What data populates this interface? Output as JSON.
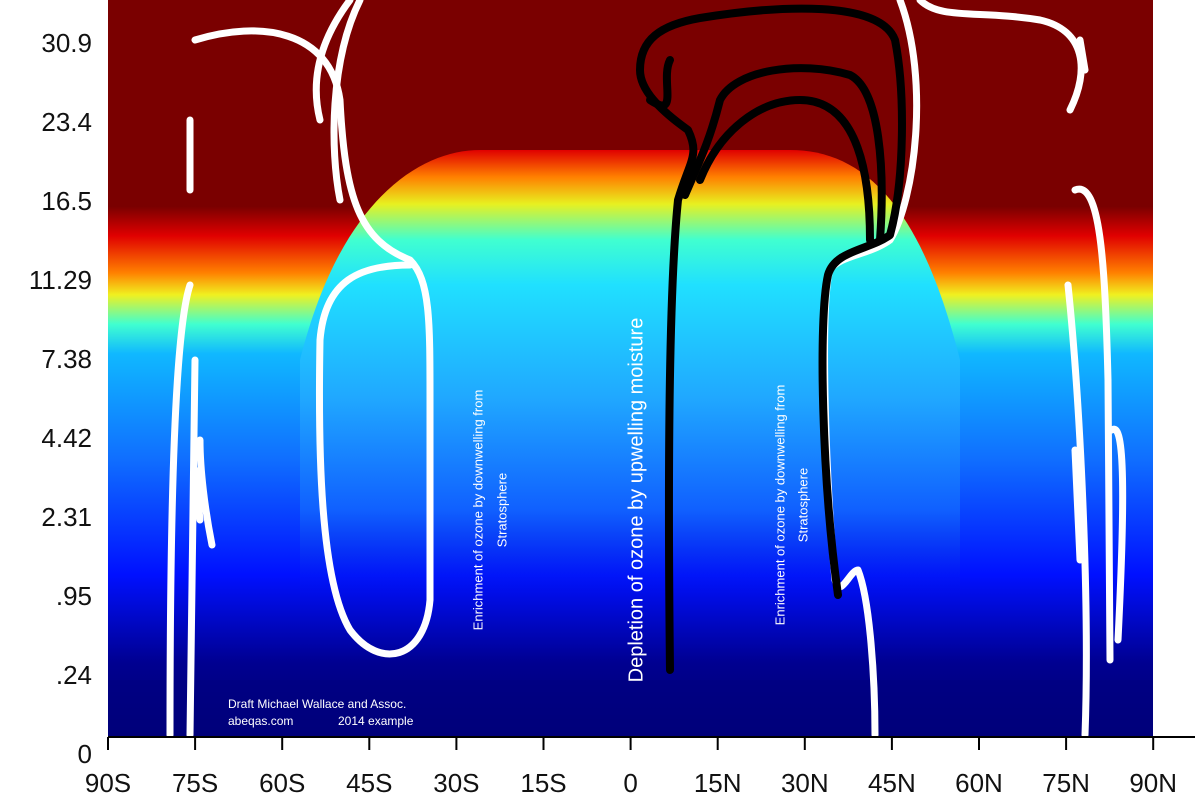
{
  "chart_data": {
    "type": "heatmap",
    "x_categories": [
      "90S",
      "75S",
      "60S",
      "45S",
      "30S",
      "15S",
      "0",
      "15N",
      "30N",
      "45N",
      "60N",
      "75N",
      "90N"
    ],
    "y_categories": [
      "30.9",
      "23.4",
      "16.5",
      "11.29",
      "7.38",
      "4.42",
      "2.31",
      ".95",
      ".24",
      "0"
    ],
    "annotations": {
      "left_enrichment": [
        "Enrichment of ozone by downwelling from",
        "Stratosphere"
      ],
      "depletion": "Depletion of ozone by upwelling moisture",
      "right_enrichment": [
        "Enrichment of ozone by downwelling from",
        "Stratosphere"
      ],
      "credit": [
        "Draft Michael Wallace and Assoc.",
        "abeqas.com",
        "2014 example"
      ]
    }
  }
}
